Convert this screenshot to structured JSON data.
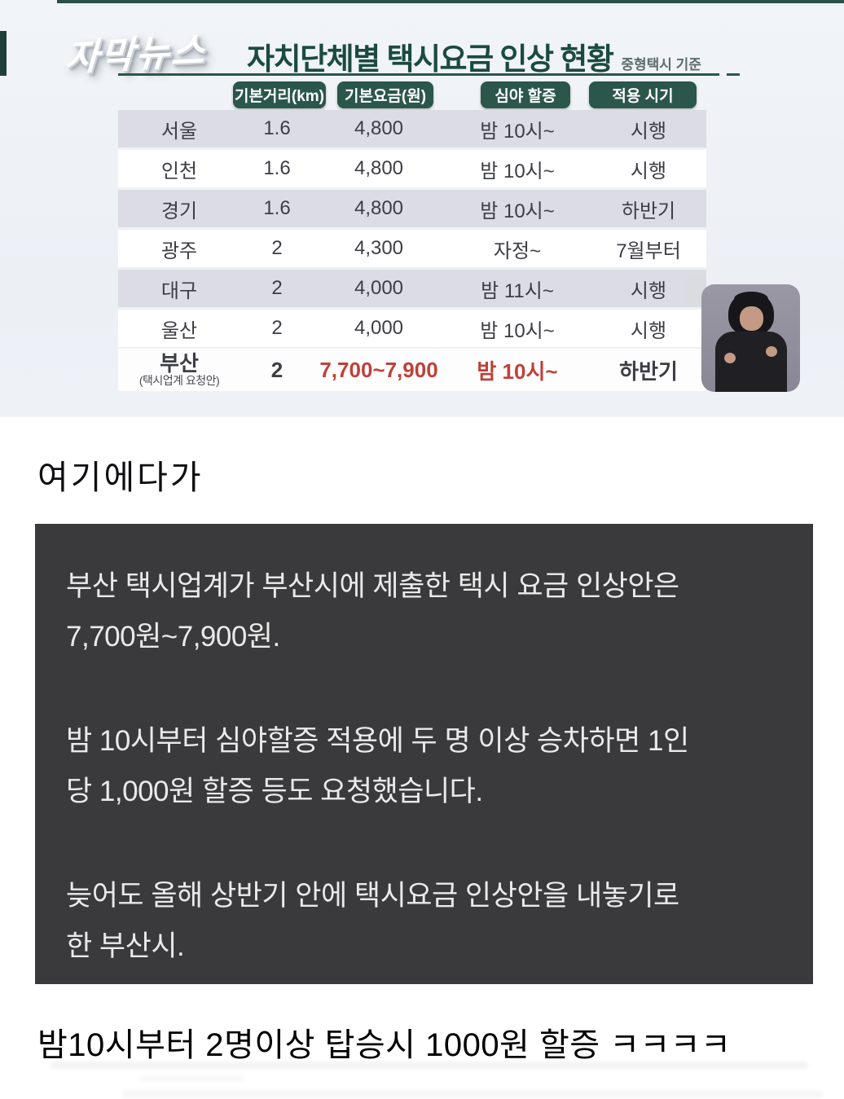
{
  "news": {
    "logo": "자막뉴스",
    "title": "자치단체별 택시요금 인상 현황",
    "subtitle": "중형택시 기준",
    "columns": [
      "기본거리(km)",
      "기본요금(원)",
      "심야 할증",
      "적용 시기"
    ],
    "rows": [
      {
        "region": "서울",
        "note": "",
        "distance": "1.6",
        "fare": "4,800",
        "surcharge": "밤 10시~",
        "timing": "시행"
      },
      {
        "region": "인천",
        "note": "",
        "distance": "1.6",
        "fare": "4,800",
        "surcharge": "밤 10시~",
        "timing": "시행"
      },
      {
        "region": "경기",
        "note": "",
        "distance": "1.6",
        "fare": "4,800",
        "surcharge": "밤 10시~",
        "timing": "하반기"
      },
      {
        "region": "광주",
        "note": "",
        "distance": "2",
        "fare": "4,300",
        "surcharge": "자정~",
        "timing": "7월부터"
      },
      {
        "region": "대구",
        "note": "",
        "distance": "2",
        "fare": "4,000",
        "surcharge": "밤 11시~",
        "timing": "시행"
      },
      {
        "region": "울산",
        "note": "",
        "distance": "2",
        "fare": "4,000",
        "surcharge": "밤 10시~",
        "timing": "시행"
      },
      {
        "region": "부산",
        "note": "(택시업계 요청안)",
        "distance": "2",
        "fare": "7,700~7,900",
        "surcharge": "밤 10시~",
        "timing": "하반기"
      }
    ],
    "colors": {
      "title_green": "#1b4a41",
      "pill_green": "#2b564c",
      "row_stripe": "#dbdce4",
      "highlight_red": "#c0403a"
    }
  },
  "post": {
    "intro": "여기에다가",
    "quote_paragraphs": [
      "부산 택시업계가 부산시에 제출한 택시 요금 인상안은\n7,700원~7,900원.",
      "밤 10시부터 심야할증 적용에 두 명 이상 승차하면 1인\n당 1,000원 할증 등도 요청했습니다.",
      "늦어도 올해 상반기 안에 택시요금 인상안을 내놓기로\n한 부산시."
    ],
    "quote_bg": "#3a3a3c",
    "comment": "밤10시부터 2명이상 탑승시 1000원 할증 ㅋㅋㅋㅋ"
  }
}
